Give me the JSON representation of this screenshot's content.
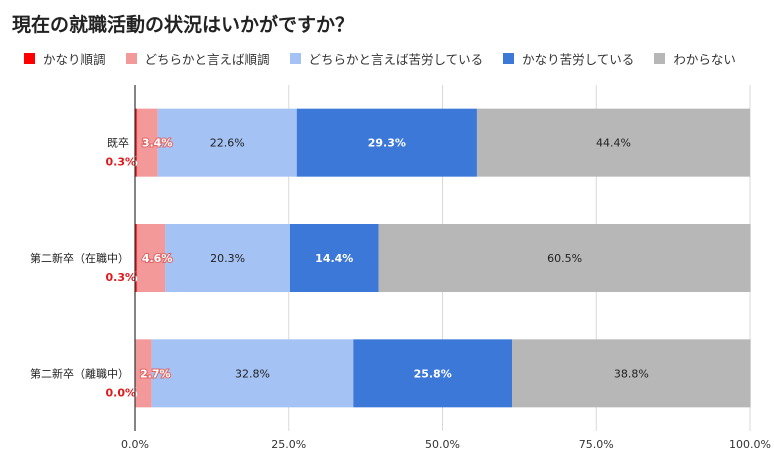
{
  "chart_data": {
    "type": "bar",
    "orientation": "horizontal",
    "stacked": true,
    "title": "現在の就職活動の状況はいかがですか？",
    "xlabel": "",
    "ylabel": "",
    "xlim": [
      0,
      100
    ],
    "grid": true,
    "legend_position": "top-left",
    "categories": [
      "既卒",
      "第二新卒（在職中）",
      "第二新卒（離職中）"
    ],
    "series": [
      {
        "name": "かなり順調",
        "color": "#ff0000",
        "values": [
          0.3,
          0.3,
          0.0
        ],
        "labels": [
          "0.3%",
          "0.3%",
          "0.0%"
        ],
        "label_color": "#e0191c"
      },
      {
        "name": "どちらかと言えば順調",
        "color": "#f4999a",
        "values": [
          3.4,
          4.6,
          2.7
        ],
        "labels": [
          "3.4%",
          "4.6%",
          "2.7%"
        ],
        "label_color": "#ffffff"
      },
      {
        "name": "どちらかと言えば苦労している",
        "color": "#a4c2f4",
        "values": [
          22.6,
          20.3,
          32.8
        ],
        "labels": [
          "22.6%",
          "20.3%",
          "32.8%"
        ],
        "label_color": "#222222"
      },
      {
        "name": "かなり苦労している",
        "color": "#3c78d8",
        "values": [
          29.3,
          14.4,
          25.8
        ],
        "labels": [
          "29.3%",
          "14.4%",
          "25.8%"
        ],
        "label_color": "#ffffff"
      },
      {
        "name": "わからない",
        "color": "#b7b7b7",
        "values": [
          44.4,
          60.5,
          38.8
        ],
        "labels": [
          "44.4%",
          "60.5%",
          "38.8%"
        ],
        "label_color": "#222222"
      }
    ],
    "xticks": [
      0,
      25,
      50,
      75,
      100
    ],
    "xtick_labels": [
      "0.0%",
      "25.0%",
      "50.0%",
      "75.0%",
      "100.0%"
    ]
  }
}
